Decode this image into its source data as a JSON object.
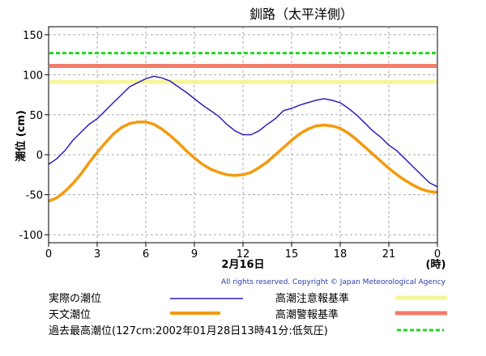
{
  "chart_data": {
    "type": "line",
    "title": "釧路（太平洋側）",
    "ylabel": "潮位 (cm)",
    "xlabel": "2月16日",
    "x_unit": "(時)",
    "xlim": [
      0,
      24
    ],
    "ylim": [
      -110,
      160
    ],
    "x_ticks": [
      "0",
      "3",
      "6",
      "9",
      "12",
      "15",
      "18",
      "21",
      "0"
    ],
    "y_ticks": [
      "-100",
      "-50",
      "0",
      "50",
      "100",
      "150"
    ],
    "grid": true,
    "copyright": "All rights reserved. Copyright © Japan Meteorological Agency",
    "thresholds": [
      {
        "name": "高潮注意報基準",
        "value": 91,
        "color": "#f6f59b"
      },
      {
        "name": "高潮警報基準",
        "value": 111,
        "color": "#f47b6a"
      },
      {
        "name": "過去最高潮位(127cm:2002年01月28日13時41分:低気圧)",
        "value": 127,
        "color": "#1fd61f"
      }
    ],
    "series": [
      {
        "name": "実際の潮位",
        "color": "#2c1fb8",
        "x": [
          0,
          0.5,
          1,
          1.5,
          2,
          2.5,
          3,
          3.5,
          4,
          4.5,
          5,
          5.5,
          6,
          6.5,
          7,
          7.5,
          8,
          8.5,
          9,
          9.5,
          10,
          10.5,
          11,
          11.5,
          12,
          12.5,
          13,
          13.5,
          14,
          14.5,
          15,
          15.5,
          16,
          16.5,
          17,
          17.5,
          18,
          18.5,
          19,
          19.5,
          20,
          20.5,
          21,
          21.5,
          22,
          22.5,
          23,
          23.5,
          24
        ],
        "y": [
          -12,
          -5,
          5,
          18,
          28,
          38,
          45,
          55,
          65,
          75,
          85,
          90,
          95,
          98,
          96,
          92,
          85,
          78,
          70,
          62,
          55,
          48,
          38,
          30,
          25,
          25,
          30,
          38,
          45,
          55,
          58,
          62,
          65,
          68,
          70,
          68,
          65,
          58,
          50,
          40,
          30,
          22,
          12,
          5,
          -5,
          -15,
          -25,
          -35,
          -40
        ]
      },
      {
        "name": "天文潮位",
        "color": "#f39a0e",
        "x": [
          0,
          0.5,
          1,
          1.5,
          2,
          2.5,
          3,
          3.5,
          4,
          4.5,
          5,
          5.5,
          6,
          6.5,
          7,
          7.5,
          8,
          8.5,
          9,
          9.5,
          10,
          10.5,
          11,
          11.5,
          12,
          12.5,
          13,
          13.5,
          14,
          14.5,
          15,
          15.5,
          16,
          16.5,
          17,
          17.5,
          18,
          18.5,
          19,
          19.5,
          20,
          20.5,
          21,
          21.5,
          22,
          22.5,
          23,
          23.5,
          24
        ],
        "y": [
          -58,
          -54,
          -46,
          -36,
          -24,
          -10,
          3,
          15,
          26,
          34,
          39,
          41,
          41,
          38,
          32,
          24,
          15,
          5,
          -4,
          -12,
          -18,
          -22,
          -25,
          -26,
          -25,
          -22,
          -16,
          -9,
          0,
          9,
          18,
          26,
          32,
          36,
          37,
          36,
          33,
          27,
          19,
          10,
          1,
          -8,
          -17,
          -25,
          -32,
          -38,
          -43,
          -46,
          -47
        ]
      }
    ],
    "legend_placement": "bottom"
  }
}
